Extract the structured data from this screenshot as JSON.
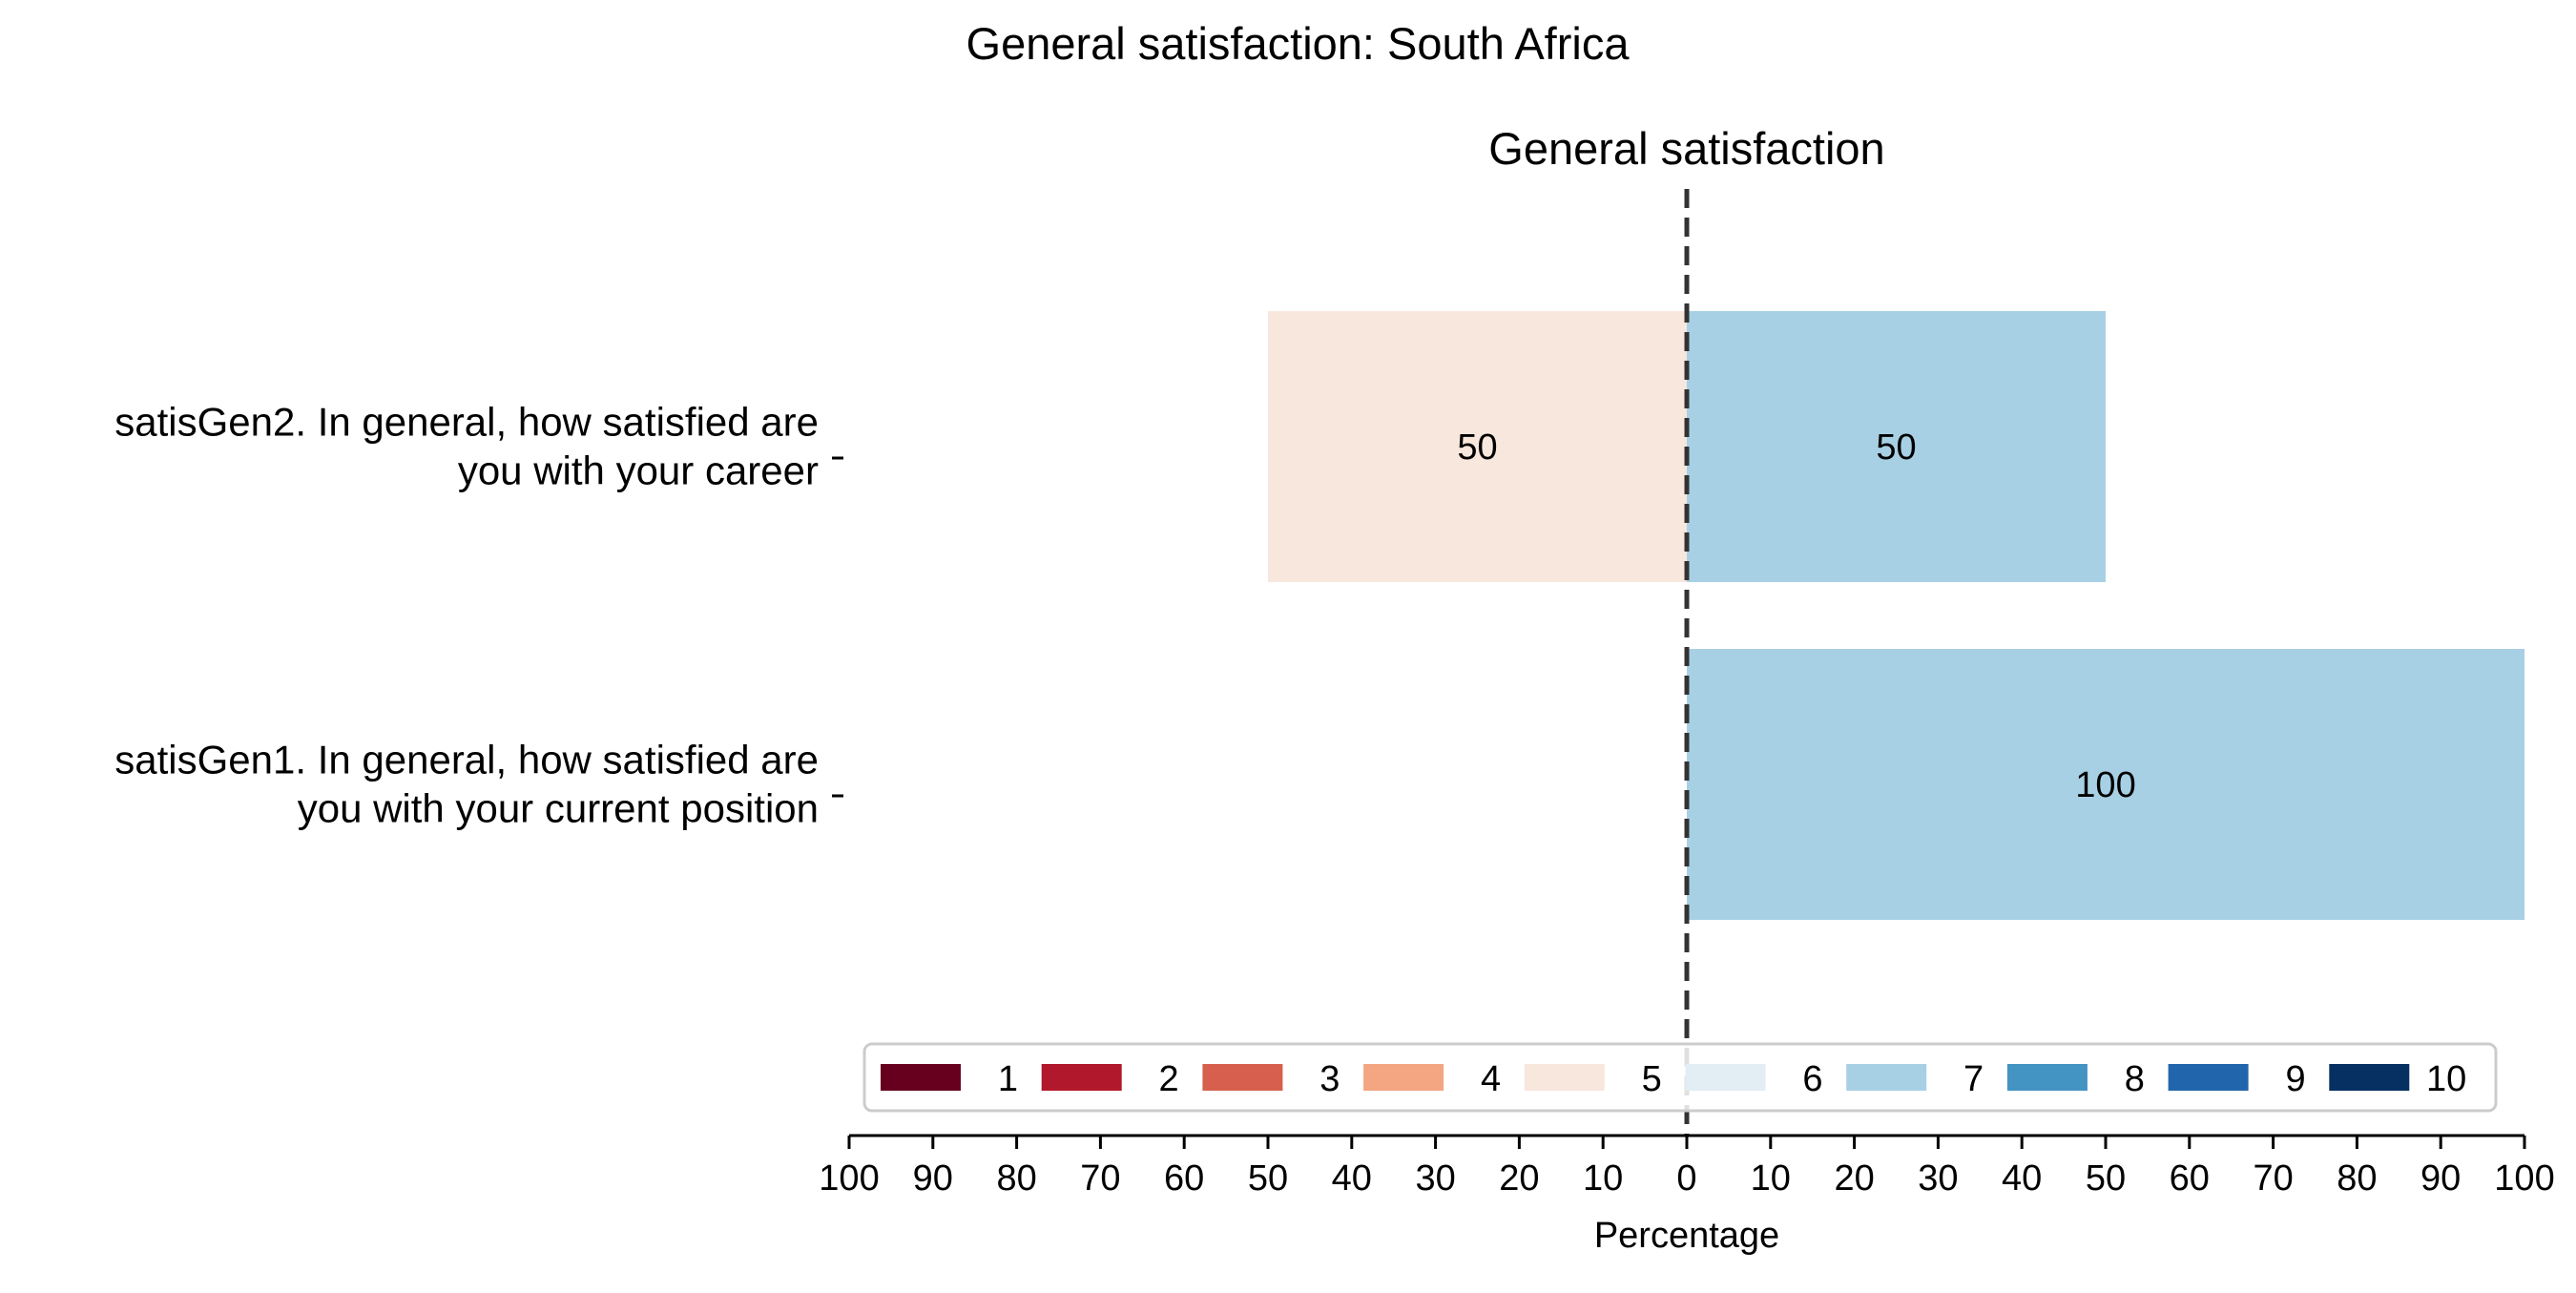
{
  "chart_data": {
    "type": "bar",
    "orientation": "horizontal",
    "stacking": "diverging",
    "title": "General satisfaction: South Africa",
    "subtitle": "General satisfaction",
    "xlabel": "Percentage",
    "xlim": [
      -100,
      100
    ],
    "xticks": [
      -100,
      -90,
      -80,
      -70,
      -60,
      -50,
      -40,
      -30,
      -20,
      -10,
      0,
      10,
      20,
      30,
      40,
      50,
      60,
      70,
      80,
      90,
      100
    ],
    "xtick_labels": [
      "100",
      "90",
      "80",
      "70",
      "60",
      "50",
      "40",
      "30",
      "20",
      "10",
      "0",
      "10",
      "20",
      "30",
      "40",
      "50",
      "60",
      "70",
      "80",
      "90",
      "100"
    ],
    "categories": [
      {
        "lines": [
          "satisGen2. In general, how satisfied are",
          "you with your career"
        ]
      },
      {
        "lines": [
          "satisGen1. In general, how satisfied are",
          "you with your current position"
        ]
      }
    ],
    "series": [
      {
        "name": "1",
        "color": "#67001f",
        "values": [
          0,
          0
        ]
      },
      {
        "name": "2",
        "color": "#b2182b",
        "values": [
          0,
          0
        ]
      },
      {
        "name": "3",
        "color": "#d6604d",
        "values": [
          0,
          0
        ]
      },
      {
        "name": "4",
        "color": "#f4a582",
        "values": [
          0,
          0
        ]
      },
      {
        "name": "5",
        "color": "#f8e7dd",
        "values": [
          50,
          0
        ]
      },
      {
        "name": "6",
        "color": "#e2edf4",
        "values": [
          0,
          0
        ]
      },
      {
        "name": "7",
        "color": "#a8d0e4",
        "values": [
          50,
          100
        ]
      },
      {
        "name": "8",
        "color": "#4393c3",
        "values": [
          0,
          0
        ]
      },
      {
        "name": "9",
        "color": "#2166ac",
        "values": [
          0,
          0
        ]
      },
      {
        "name": "10",
        "color": "#053061",
        "values": [
          0,
          0
        ]
      }
    ],
    "negative_series": [
      "1",
      "2",
      "3",
      "4",
      "5"
    ],
    "positive_series": [
      "6",
      "7",
      "8",
      "9",
      "10"
    ],
    "data_labels": true,
    "center_line": {
      "x": 0,
      "style": "dashed",
      "color": "#333333"
    },
    "grid": false,
    "legend": {
      "position": "bottom-center",
      "columns": 10
    }
  }
}
